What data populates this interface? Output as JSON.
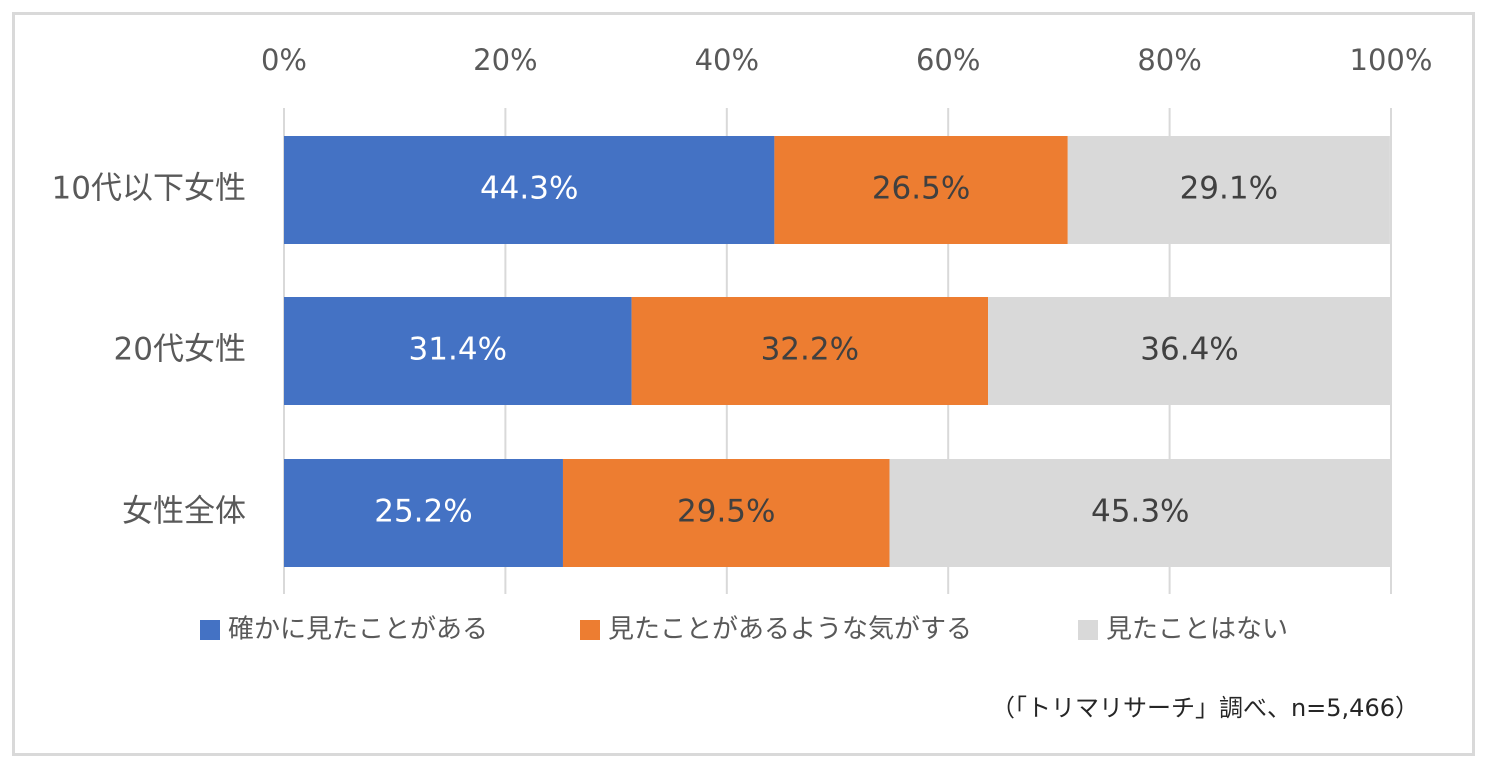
{
  "chart_data": {
    "type": "bar",
    "orientation": "horizontal",
    "stacked": "percent",
    "categories": [
      "10代以下女性",
      "20代女性",
      "女性全体"
    ],
    "series": [
      {
        "name": "確かに見たことがある",
        "color": "#4472c4",
        "label_color": "#ffffff",
        "values": [
          44.3,
          31.4,
          25.2
        ],
        "labels": [
          "44.3%",
          "31.4%",
          "25.2%"
        ]
      },
      {
        "name": "見たことがあるような気がする",
        "color": "#ed7d31",
        "label_color": "#404040",
        "values": [
          26.5,
          32.2,
          29.5
        ],
        "labels": [
          "26.5%",
          "32.2%",
          "29.5%"
        ]
      },
      {
        "name": "見たことはない",
        "color": "#d9d9d9",
        "label_color": "#404040",
        "values": [
          29.1,
          36.4,
          45.3
        ],
        "labels": [
          "29.1%",
          "36.4%",
          "45.3%"
        ]
      }
    ],
    "xlim": [
      0,
      100
    ],
    "xticks": [
      0,
      20,
      40,
      60,
      80,
      100
    ],
    "xtick_labels": [
      "0%",
      "20%",
      "40%",
      "60%",
      "80%",
      "100%"
    ],
    "axis_position": "top",
    "grid": true,
    "legend": "bottom",
    "source_note": "（「トリマリサーチ」調べ、n=5,466）"
  }
}
